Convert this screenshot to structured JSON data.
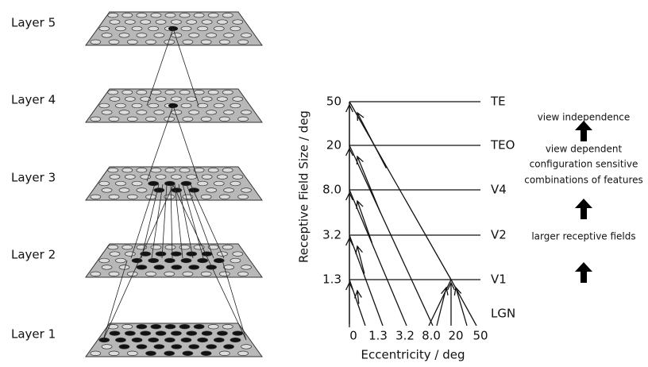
{
  "layers": [
    "Layer 5",
    "Layer 4",
    "Layer 3",
    "Layer 2",
    "Layer 1"
  ],
  "hierarchy": {
    "y_axis_label": "Receptive Field Size / deg",
    "x_axis_label": "Eccentricity / deg",
    "y_ticks": [
      "50",
      "20",
      "8.0",
      "3.2",
      "1.3"
    ],
    "x_ticks": [
      "0",
      "1.3",
      "3.2",
      "8.0",
      "20",
      "50"
    ],
    "areas": [
      "TE",
      "TEO",
      "V4",
      "V2",
      "V1",
      "LGN"
    ]
  },
  "annotations": [
    "view independence",
    "view dependent",
    "configuration sensitive",
    "combinations of features",
    "larger receptive fields"
  ]
}
